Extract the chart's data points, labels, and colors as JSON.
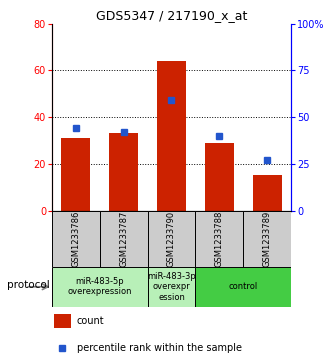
{
  "title": "GDS5347 / 217190_x_at",
  "samples": [
    "GSM1233786",
    "GSM1233787",
    "GSM1233790",
    "GSM1233788",
    "GSM1233789"
  ],
  "counts": [
    31,
    33,
    64,
    29,
    15
  ],
  "percentiles": [
    44,
    42,
    59,
    40,
    27
  ],
  "left_ylim": [
    0,
    80
  ],
  "right_ylim": [
    0,
    100
  ],
  "left_yticks": [
    0,
    20,
    40,
    60,
    80
  ],
  "right_yticks": [
    0,
    25,
    50,
    75,
    100
  ],
  "right_yticklabels": [
    "0",
    "25",
    "50",
    "75",
    "100%"
  ],
  "bar_color": "#cc2200",
  "marker_color": "#2255cc",
  "proto_groups": [
    {
      "start": 0,
      "end": 1,
      "label": "miR-483-5p\noverexpression",
      "color": "#b8f0b8"
    },
    {
      "start": 2,
      "end": 2,
      "label": "miR-483-3p\noverexpr\nession",
      "color": "#b8f0b8"
    },
    {
      "start": 3,
      "end": 4,
      "label": "control",
      "color": "#44cc44"
    }
  ],
  "sample_box_color": "#cccccc",
  "legend_count_label": "count",
  "legend_pct_label": "percentile rank within the sample",
  "protocol_label": "protocol",
  "title_fontsize": 9,
  "axis_fontsize": 7,
  "label_fontsize": 6,
  "legend_fontsize": 7
}
